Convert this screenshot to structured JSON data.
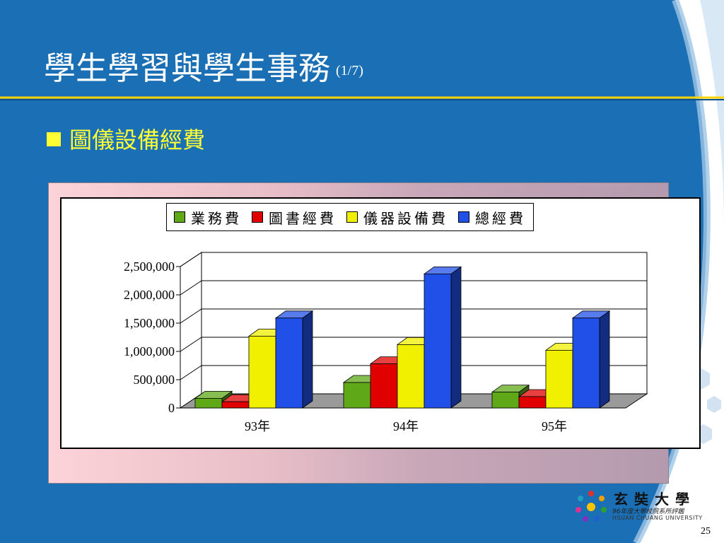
{
  "slide": {
    "title": "學生學習與學生事務",
    "title_suffix": "(1/7)",
    "bullet": "圖儀設備經費",
    "page_number": "25"
  },
  "logo": {
    "name": "玄奘大學",
    "subtitle": "96年度大學校院系所評鑑",
    "english": "HSUAN CHUANG UNIVERSITY"
  },
  "colors": {
    "background": "#1b6fb4",
    "title": "#ffffff",
    "bullet": "#ffff33",
    "accent_line": "#ffd400"
  },
  "chart_data": {
    "type": "bar",
    "categories": [
      "93年",
      "94年",
      "95年"
    ],
    "series": [
      {
        "name": "業務費",
        "color": "#5fa818",
        "values": [
          170000,
          450000,
          280000
        ]
      },
      {
        "name": "圖書經費",
        "color": "#e00000",
        "values": [
          110000,
          780000,
          200000
        ]
      },
      {
        "name": "儀器設備費",
        "color": "#f0f000",
        "values": [
          1270000,
          1120000,
          1020000
        ]
      },
      {
        "name": "總經費",
        "color": "#2050e8",
        "values": [
          1590000,
          2370000,
          1590000
        ]
      }
    ],
    "yticks": [
      "0",
      "500,000",
      "1,000,000",
      "1,500,000",
      "2,000,000",
      "2,500,000"
    ],
    "ylim": [
      0,
      2500000
    ],
    "legend_position": "top",
    "grid": true,
    "three_d": true
  }
}
